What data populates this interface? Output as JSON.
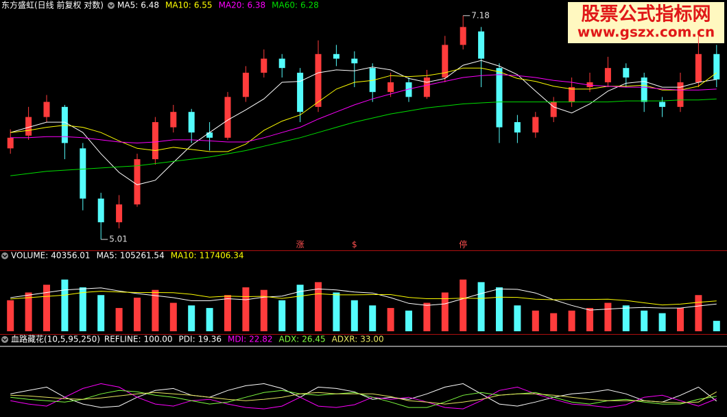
{
  "chart_data": [
    {
      "type": "candlestick",
      "title": "东方盛虹(日线 前复权 对数)",
      "log_scale": true,
      "ylim": [
        4.95,
        7.25
      ],
      "up_color": "#ff3c3c",
      "down_color": "#54fcfc",
      "open": [
        5.8,
        5.92,
        6.1,
        6.2,
        5.8,
        5.35,
        5.15,
        5.3,
        5.7,
        6.0,
        6.15,
        5.95,
        5.9,
        6.3,
        6.55,
        6.7,
        6.55,
        6.2,
        6.75,
        6.7,
        6.6,
        6.35,
        6.45,
        6.3,
        6.5,
        6.85,
        7.0,
        6.6,
        6.05,
        5.95,
        6.1,
        6.25,
        6.4,
        6.45,
        6.6,
        6.5,
        6.25,
        6.2,
        6.45,
        6.75
      ],
      "high": [
        5.98,
        6.2,
        6.32,
        6.22,
        5.85,
        5.4,
        5.38,
        5.75,
        6.1,
        6.22,
        6.18,
        6.05,
        6.35,
        6.62,
        6.8,
        6.75,
        6.6,
        6.9,
        6.85,
        6.78,
        6.65,
        6.55,
        6.5,
        6.58,
        6.95,
        7.18,
        7.05,
        6.65,
        6.12,
        6.15,
        6.3,
        6.5,
        6.55,
        6.72,
        6.65,
        6.55,
        6.3,
        6.55,
        6.95,
        6.85
      ],
      "low": [
        5.75,
        5.88,
        6.05,
        5.7,
        5.25,
        5.01,
        5.1,
        5.28,
        5.65,
        5.95,
        5.85,
        5.78,
        5.88,
        6.25,
        6.5,
        6.5,
        6.05,
        6.15,
        6.62,
        6.4,
        6.25,
        6.3,
        6.25,
        6.28,
        6.45,
        6.8,
        6.4,
        5.85,
        5.85,
        5.9,
        6.05,
        6.2,
        6.35,
        6.4,
        6.4,
        6.15,
        6.1,
        6.15,
        6.4,
        6.4
      ],
      "close": [
        5.9,
        6.1,
        6.25,
        5.85,
        5.35,
        5.15,
        5.3,
        5.7,
        6.05,
        6.15,
        5.95,
        5.9,
        6.3,
        6.55,
        6.7,
        6.6,
        6.15,
        6.75,
        6.7,
        6.65,
        6.35,
        6.45,
        6.3,
        6.5,
        6.85,
        7.05,
        6.7,
        6.0,
        5.95,
        6.1,
        6.25,
        6.4,
        6.45,
        6.6,
        6.5,
        6.25,
        6.2,
        6.45,
        6.75,
        6.48
      ],
      "series": [
        {
          "name": "MA5:",
          "color": "#ffffff",
          "values": [
            5.95,
            6.0,
            6.05,
            6.05,
            5.95,
            5.75,
            5.58,
            5.47,
            5.51,
            5.67,
            5.83,
            5.95,
            6.07,
            6.17,
            6.28,
            6.45,
            6.46,
            6.55,
            6.58,
            6.57,
            6.61,
            6.58,
            6.49,
            6.45,
            6.49,
            6.63,
            6.68,
            6.62,
            6.53,
            6.36,
            6.2,
            6.14,
            6.23,
            6.36,
            6.44,
            6.46,
            6.4,
            6.4,
            6.45,
            6.48
          ]
        },
        {
          "name": "MA10:",
          "color": "#ffff00",
          "values": [
            5.95,
            5.97,
            6.0,
            6.02,
            6.0,
            5.95,
            5.87,
            5.8,
            5.78,
            5.81,
            5.79,
            5.77,
            5.77,
            5.84,
            5.97,
            6.06,
            6.12,
            6.25,
            6.38,
            6.45,
            6.47,
            6.52,
            6.51,
            6.52,
            6.55,
            6.6,
            6.6,
            6.56,
            6.49,
            6.46,
            6.41,
            6.38,
            6.38,
            6.41,
            6.41,
            6.42,
            6.37,
            6.37,
            6.41,
            6.55
          ]
        },
        {
          "name": "MA20:",
          "color": "#ff00ff",
          "values": [
            5.9,
            5.9,
            5.91,
            5.91,
            5.9,
            5.88,
            5.86,
            5.85,
            5.86,
            5.88,
            5.88,
            5.87,
            5.86,
            5.86,
            5.9,
            5.95,
            6.0,
            6.08,
            6.15,
            6.22,
            6.28,
            6.33,
            6.38,
            6.42,
            6.46,
            6.5,
            6.52,
            6.53,
            6.52,
            6.5,
            6.47,
            6.45,
            6.42,
            6.41,
            6.4,
            6.4,
            6.38,
            6.37,
            6.37,
            6.38
          ]
        },
        {
          "name": "MA60:",
          "color": "#00e000",
          "values": [
            5.55,
            5.57,
            5.59,
            5.6,
            5.61,
            5.62,
            5.63,
            5.64,
            5.66,
            5.68,
            5.7,
            5.72,
            5.75,
            5.78,
            5.82,
            5.86,
            5.9,
            5.95,
            6.0,
            6.05,
            6.09,
            6.13,
            6.16,
            6.19,
            6.21,
            6.23,
            6.24,
            6.25,
            6.25,
            6.25,
            6.25,
            6.25,
            6.25,
            6.25,
            6.26,
            6.26,
            6.26,
            6.27,
            6.27,
            6.28
          ]
        }
      ],
      "high_label": 7.18,
      "low_label": 5.01,
      "signals": [
        null,
        null,
        null,
        null,
        null,
        null,
        null,
        null,
        null,
        null,
        null,
        null,
        null,
        null,
        null,
        null,
        "涨",
        null,
        null,
        "$",
        null,
        null,
        null,
        null,
        null,
        "停",
        null,
        null,
        null,
        null,
        null,
        null,
        null,
        null,
        null,
        null,
        null,
        null,
        null,
        null
      ]
    },
    {
      "type": "bar",
      "title": "VOLUME:",
      "ylim": [
        0,
        260000
      ],
      "values": [
        120000,
        150000,
        180000,
        200000,
        170000,
        140000,
        90000,
        130000,
        160000,
        110000,
        100000,
        90000,
        140000,
        170000,
        160000,
        120000,
        180000,
        190000,
        150000,
        120000,
        100000,
        90000,
        80000,
        110000,
        150000,
        200000,
        190000,
        170000,
        100000,
        80000,
        70000,
        80000,
        90000,
        110000,
        100000,
        80000,
        70000,
        90000,
        140000,
        40356.01
      ],
      "series": [
        {
          "name": "MA5:",
          "color": "#ffffff",
          "values": [
            130000,
            140000,
            150000,
            160000,
            164000,
            168000,
            156000,
            146000,
            138000,
            130000,
            118000,
            118000,
            126000,
            122000,
            132000,
            136000,
            154000,
            164000,
            160000,
            152000,
            148000,
            130000,
            108000,
            100000,
            106000,
            126000,
            146000,
            164000,
            162000,
            148000,
            122000,
            100000,
            82000,
            86000,
            90000,
            92000,
            90000,
            90000,
            98000,
            105261.54
          ]
        },
        {
          "name": "MA10:",
          "color": "#ffff00",
          "values": [
            125000,
            130000,
            135000,
            140000,
            150000,
            155000,
            152000,
            150000,
            150000,
            149000,
            143000,
            132000,
            136000,
            134000,
            135000,
            127000,
            136000,
            145000,
            141000,
            141000,
            142000,
            142000,
            131000,
            126000,
            126000,
            128000,
            127000,
            132000,
            131000,
            124000,
            122000,
            123000,
            123000,
            124000,
            119000,
            110000,
            102000,
            105000,
            112000,
            117406.34
          ]
        }
      ]
    },
    {
      "type": "line",
      "title": "血路藏花(10,5,95,250)",
      "ylim": [
        0,
        105
      ],
      "refline": {
        "name": "REFLINE:",
        "value": 100,
        "label": "100.00",
        "color": "#ffffff"
      },
      "series": [
        {
          "name": "PDI:",
          "color": "#ffffff",
          "values": [
            30,
            35,
            40,
            25,
            15,
            10,
            12,
            25,
            35,
            38,
            28,
            25,
            35,
            42,
            45,
            38,
            25,
            40,
            38,
            33,
            22,
            25,
            22,
            30,
            40,
            45,
            30,
            15,
            12,
            18,
            25,
            30,
            32,
            36,
            30,
            20,
            18,
            28,
            40,
            19.36
          ]
        },
        {
          "name": "MDI:",
          "color": "#ff00ff",
          "values": [
            20,
            15,
            12,
            25,
            38,
            45,
            40,
            25,
            15,
            12,
            20,
            22,
            15,
            10,
            8,
            12,
            25,
            12,
            10,
            14,
            25,
            22,
            25,
            18,
            10,
            8,
            20,
            35,
            40,
            30,
            22,
            15,
            13,
            10,
            14,
            25,
            28,
            20,
            12,
            22.82
          ]
        },
        {
          "name": "ADX:",
          "color": "#80ff40",
          "values": [
            25,
            22,
            20,
            18,
            22,
            30,
            35,
            33,
            28,
            25,
            20,
            15,
            18,
            25,
            32,
            35,
            30,
            28,
            30,
            32,
            25,
            18,
            10,
            10,
            18,
            28,
            32,
            28,
            30,
            32,
            25,
            18,
            15,
            20,
            22,
            18,
            15,
            15,
            22,
            26.45
          ]
        },
        {
          "name": "ADXR:",
          "color": "#e8e860",
          "values": [
            28,
            27,
            25,
            23,
            22,
            24,
            27,
            30,
            32,
            30,
            28,
            25,
            22,
            20,
            22,
            25,
            30,
            32,
            30,
            30,
            30,
            26,
            20,
            18,
            15,
            18,
            22,
            28,
            30,
            30,
            28,
            25,
            22,
            20,
            20,
            20,
            18,
            17,
            18,
            33
          ],
          "value_labels": [
            null,
            null,
            null,
            null,
            null,
            null,
            null,
            null,
            null,
            null,
            null,
            null,
            null,
            null,
            null,
            null,
            null,
            null,
            null,
            null,
            null,
            null,
            null,
            null,
            null,
            null,
            null,
            null,
            null,
            null,
            null,
            null,
            null,
            null,
            null,
            null,
            null,
            null,
            null,
            "33.00"
          ]
        }
      ]
    }
  ],
  "watermark": {
    "title": "股票公式指标网",
    "url": "www.gszx.com.cn"
  }
}
